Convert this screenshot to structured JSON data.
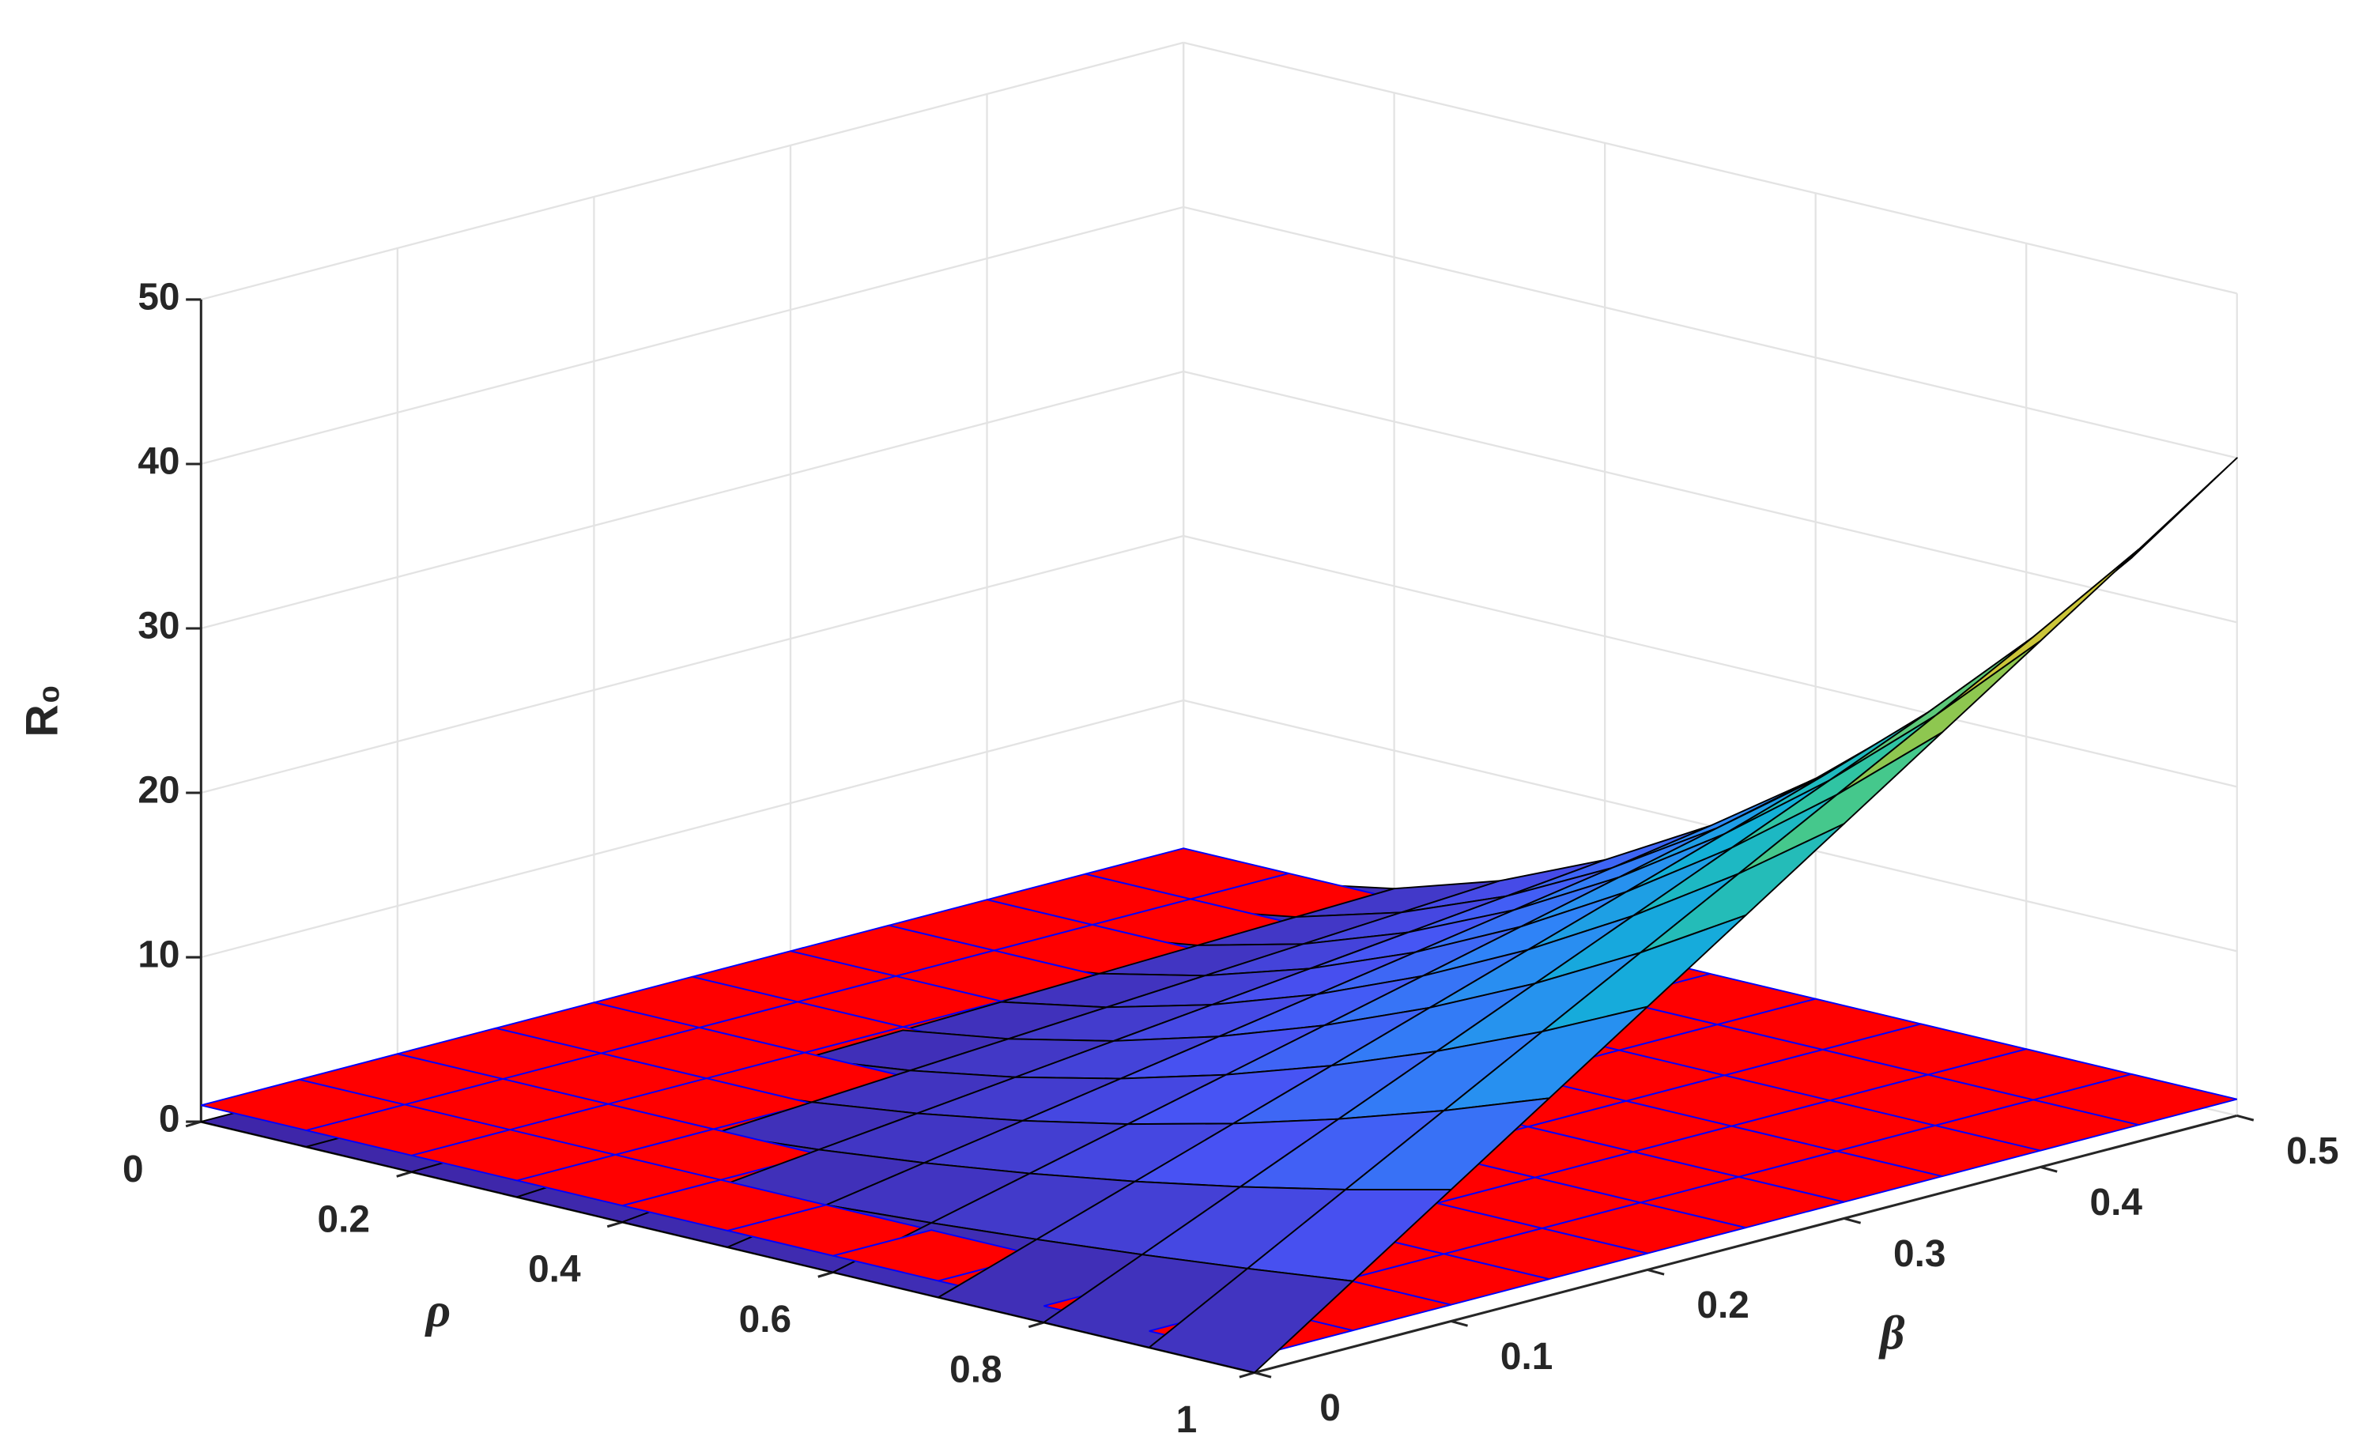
{
  "chart_data": {
    "type": "surface",
    "xlabel": "ρ",
    "ylabel": "β",
    "zlabel": "R₀",
    "x": [
      0,
      0.1,
      0.2,
      0.3,
      0.4,
      0.5,
      0.6,
      0.7,
      0.8,
      0.9,
      1
    ],
    "y": [
      0,
      0.05,
      0.1,
      0.15,
      0.2,
      0.25,
      0.3,
      0.35,
      0.4,
      0.45,
      0.5
    ],
    "z": [
      [
        0,
        0,
        0,
        0,
        0,
        0,
        0,
        0,
        0,
        0,
        0
      ],
      [
        0,
        0.04,
        0.08,
        0.12,
        0.16,
        0.2,
        0.24,
        0.28,
        0.32,
        0.36,
        0.4
      ],
      [
        0,
        0.16,
        0.32,
        0.48,
        0.64,
        0.8,
        0.96,
        1.12,
        1.28,
        1.44,
        1.6
      ],
      [
        0,
        0.36,
        0.72,
        1.08,
        1.44,
        1.8,
        2.16,
        2.52,
        2.88,
        3.24,
        3.6
      ],
      [
        0,
        0.64,
        1.28,
        1.92,
        2.56,
        3.2,
        3.84,
        4.48,
        5.12,
        5.76,
        6.4
      ],
      [
        0,
        1,
        2,
        3,
        4,
        5,
        6,
        7,
        8,
        9,
        10
      ],
      [
        0,
        1.44,
        2.88,
        4.32,
        5.76,
        7.2,
        8.64,
        10.08,
        11.52,
        12.96,
        14.4
      ],
      [
        0,
        1.96,
        3.92,
        5.88,
        7.84,
        9.8,
        11.76,
        13.72,
        15.68,
        17.64,
        19.6
      ],
      [
        0,
        2.56,
        5.12,
        7.68,
        10.24,
        12.8,
        15.36,
        17.92,
        20.48,
        23.04,
        25.6
      ],
      [
        0,
        3.24,
        6.48,
        9.72,
        12.96,
        16.2,
        19.44,
        22.68,
        25.92,
        29.16,
        32.4
      ],
      [
        0,
        4,
        8,
        12,
        16,
        20,
        24,
        28,
        32,
        36,
        40
      ]
    ],
    "colormap": "parula",
    "edge_color": "#000000",
    "plane": {
      "z": 1,
      "color": "#ff0000",
      "edge_color": "#0000ff"
    },
    "xlim": [
      0,
      1
    ],
    "xticks": [
      0,
      0.2,
      0.4,
      0.6,
      0.8,
      1
    ],
    "ylim": [
      0,
      0.5
    ],
    "yticks": [
      0,
      0.1,
      0.2,
      0.3,
      0.4,
      0.5
    ],
    "zlim": [
      0,
      50
    ],
    "zticks": [
      0,
      10,
      20,
      30,
      40,
      50
    ],
    "grid": true
  }
}
